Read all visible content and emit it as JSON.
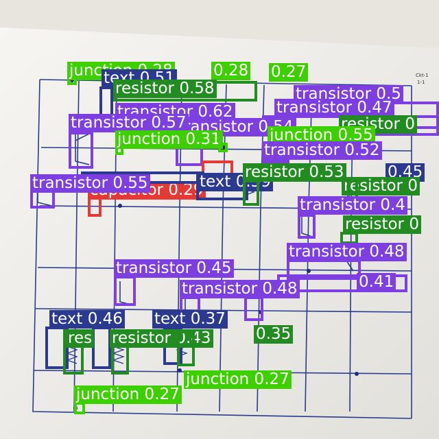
{
  "colors": {
    "transistor": "#7e3fe0",
    "resistor": "#228b22",
    "junction": "#3ecf00",
    "text": "#2b3a8e",
    "capacitor": "#e53935"
  },
  "detections": [
    {
      "id": "d01",
      "class": "junction",
      "label": "junction 0.28"
    },
    {
      "id": "d02",
      "class": "text",
      "label": "text 0.51"
    },
    {
      "id": "d03",
      "class": "junction",
      "label": "0.28"
    },
    {
      "id": "d04",
      "class": "junction",
      "label": "0.27"
    },
    {
      "id": "d05",
      "class": "resistor",
      "label": "resistor 0.58"
    },
    {
      "id": "d06",
      "class": "transistor",
      "label": "transistor 0.5"
    },
    {
      "id": "d07",
      "class": "transistor",
      "label": "transistor 0.62"
    },
    {
      "id": "d08",
      "class": "transistor",
      "label": "transistor 0.47"
    },
    {
      "id": "d09",
      "class": "transistor",
      "label": "transistor 0.54"
    },
    {
      "id": "d10",
      "class": "resistor",
      "label": "resistor 0"
    },
    {
      "id": "d11",
      "class": "junction",
      "label": "junction 0.55"
    },
    {
      "id": "d12",
      "class": "transistor",
      "label": "transistor 0.57"
    },
    {
      "id": "d13",
      "class": "junction",
      "label": "junction 0.31"
    },
    {
      "id": "d14",
      "class": "transistor",
      "label": "transistor 0.52"
    },
    {
      "id": "d15",
      "class": "resistor",
      "label": "resistor 0.53"
    },
    {
      "id": "d16",
      "class": "text",
      "label": "0.45"
    },
    {
      "id": "d17",
      "class": "capacitor",
      "label": "capacitor 0.29"
    },
    {
      "id": "d18",
      "class": "transistor",
      "label": "transistor 0.55"
    },
    {
      "id": "d19",
      "class": "text",
      "label": "text 0.59"
    },
    {
      "id": "d20",
      "class": "resistor",
      "label": "resistor 0"
    },
    {
      "id": "d21",
      "class": "transistor",
      "label": "transistor 0.4"
    },
    {
      "id": "d22",
      "class": "resistor",
      "label": "resistor 0"
    },
    {
      "id": "d23",
      "class": "transistor",
      "label": "transistor 0.48"
    },
    {
      "id": "d24",
      "class": "transistor",
      "label": "transistor 0.45"
    },
    {
      "id": "d25",
      "class": "transistor",
      "label": "0.41"
    },
    {
      "id": "d26",
      "class": "transistor",
      "label": "transistor 0.48"
    },
    {
      "id": "d27",
      "class": "text",
      "label": "text 0.46"
    },
    {
      "id": "d28",
      "class": "text",
      "label": "text 0.37"
    },
    {
      "id": "d29",
      "class": "resistor",
      "label": "resistor 0.43"
    },
    {
      "id": "d30",
      "class": "resistor",
      "label": "0.35"
    },
    {
      "id": "d31",
      "class": "resistor",
      "label": "res"
    },
    {
      "id": "d32",
      "class": "junction",
      "label": "junction 0.27"
    },
    {
      "id": "d33",
      "class": "junction",
      "label": "junction 0.27"
    }
  ]
}
